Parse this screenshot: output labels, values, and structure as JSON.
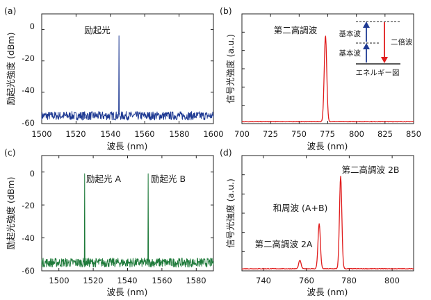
{
  "chart_data": [
    {
      "id": "a",
      "panel_label": "(a)",
      "type": "line",
      "xlabel": "波長 (nm)",
      "ylabel": "励起光強度 (dBm)",
      "xlim": [
        1500,
        1600
      ],
      "ylim": [
        -60,
        10
      ],
      "xticks": [
        "1500",
        "1520",
        "1540",
        "1560",
        "1580",
        "1600"
      ],
      "yticks": [
        "0",
        "-20",
        "-40",
        "-60"
      ],
      "color": "#1f3a93",
      "noise_floor": -55,
      "peaks": [
        {
          "x": 1545,
          "y": -4,
          "label": "励起光"
        }
      ]
    },
    {
      "id": "b",
      "panel_label": "(b)",
      "type": "line",
      "xlabel": "波長 (nm)",
      "ylabel": "信号光強度 (a.u.)",
      "xlim": [
        700,
        850
      ],
      "ylim": [
        0,
        1.1
      ],
      "xticks": [
        "700",
        "725",
        "750",
        "775",
        "800",
        "825",
        "850"
      ],
      "yticks": [],
      "color": "#e01b1b",
      "noise_floor": 0.02,
      "peaks": [
        {
          "x": 773,
          "y": 0.88,
          "label": "第二高調波"
        }
      ],
      "inset": {
        "fundamental_label_1": "基本波",
        "fundamental_label_2": "基本波",
        "sh_label": "二倍波",
        "caption": "エネルギー図",
        "up_arrow_color": "#1f3a93",
        "down_arrow_color": "#e01b1b"
      }
    },
    {
      "id": "c",
      "panel_label": "(c)",
      "type": "line",
      "xlabel": "波長 (nm)",
      "ylabel": "励起光強度 (dBm)",
      "xlim": [
        1490,
        1590
      ],
      "ylim": [
        -60,
        10
      ],
      "xticks": [
        "1500",
        "1520",
        "1540",
        "1560",
        "1580"
      ],
      "yticks": [
        "0",
        "-20",
        "-40",
        "-60"
      ],
      "color": "#1e7a3a",
      "noise_floor": -55,
      "peaks": [
        {
          "x": 1515,
          "y": -1,
          "label": "励起光 A"
        },
        {
          "x": 1552,
          "y": -1,
          "label": "励起光 B"
        }
      ]
    },
    {
      "id": "d",
      "panel_label": "(d)",
      "type": "line",
      "xlabel": "波長 (nm)",
      "ylabel": "信号光強度 (a.u.)",
      "xlim": [
        730,
        810
      ],
      "ylim": [
        0,
        1.1
      ],
      "xticks": [
        "740",
        "760",
        "780",
        "800"
      ],
      "yticks": [],
      "color": "#e01b1b",
      "noise_floor": 0.02,
      "peaks": [
        {
          "x": 757,
          "y": 0.1,
          "label": "第二高調波 2A"
        },
        {
          "x": 766,
          "y": 0.45,
          "label": "和周波 (A+B)"
        },
        {
          "x": 776,
          "y": 0.9,
          "label": "第二高調波 2B"
        }
      ]
    }
  ]
}
